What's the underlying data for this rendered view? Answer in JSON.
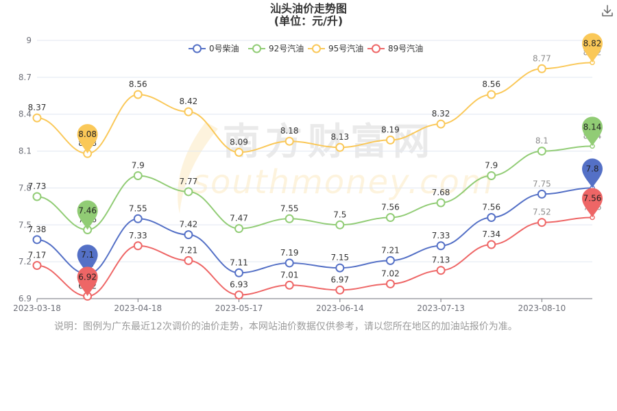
{
  "title": "汕头油价走势图",
  "subtitle": "(单位：元/升)",
  "note": "说明：图例为广东最近12次调价的油价走势，本网站油价数据仅供参考，请以您所在地区的加油站报价为准。",
  "watermark": {
    "brand": "南方财富网",
    "domain": "southmoney.com"
  },
  "toolbar": {
    "download_icon": "download-icon"
  },
  "chart_data": {
    "type": "line",
    "title": "汕头油价走势图",
    "subtitle": "(单位：元/升)",
    "smooth": true,
    "x_ticks": [
      "2023-03-18",
      "2023-04-18",
      "2023-05-17",
      "2023-06-14",
      "2023-07-13",
      "2023-08-10"
    ],
    "x_tick_indices": [
      0,
      2,
      4,
      6,
      8,
      10
    ],
    "ylim": [
      6.9,
      9.0
    ],
    "y_ticks": [
      "6.9",
      "7.2",
      "7.5",
      "7.8",
      "8.1",
      "8.4",
      "8.7",
      "9"
    ],
    "y_tick_values": [
      6.9,
      7.2,
      7.5,
      7.8,
      8.1,
      8.4,
      8.7,
      9.0
    ],
    "legend_position": "top-center",
    "series": [
      {
        "name": "0号柴油",
        "color": "#5470c6",
        "values": [
          7.38,
          7.1,
          7.55,
          7.42,
          7.11,
          7.19,
          7.15,
          7.21,
          7.33,
          7.56,
          7.75,
          7.8
        ],
        "max_pin": "7.8",
        "min_pin": "7.1"
      },
      {
        "name": "92号汽油",
        "color": "#91cc75",
        "values": [
          7.73,
          7.46,
          7.9,
          7.77,
          7.47,
          7.55,
          7.5,
          7.56,
          7.68,
          7.9,
          8.1,
          8.14
        ],
        "max_pin": "8.14",
        "min_pin": "7.46"
      },
      {
        "name": "95号汽油",
        "color": "#fac858",
        "values": [
          8.37,
          8.08,
          8.56,
          8.42,
          8.09,
          8.18,
          8.13,
          8.19,
          8.32,
          8.56,
          8.77,
          8.82
        ],
        "max_pin": "8.82",
        "min_pin": "8.08"
      },
      {
        "name": "89号汽油",
        "color": "#ee6666",
        "values": [
          7.17,
          6.92,
          7.33,
          7.21,
          6.93,
          7.01,
          6.97,
          7.02,
          7.13,
          7.34,
          7.52,
          7.56
        ],
        "max_pin": "7.56",
        "min_pin": "6.92"
      }
    ]
  }
}
